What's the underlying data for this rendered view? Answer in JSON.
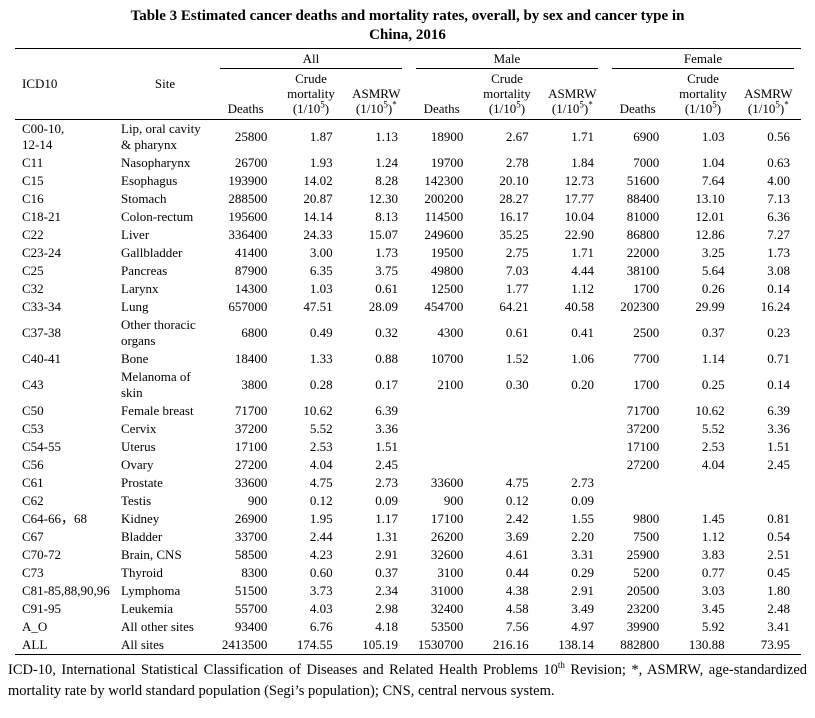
{
  "colors": {
    "text": "#000000",
    "background": "#ffffff",
    "rule": "#000000"
  },
  "title": {
    "line1": "Table 3 Estimated cancer deaths and mortality rates, overall, by sex and cancer type in",
    "line2": "China, 2016"
  },
  "table": {
    "col_headers": {
      "icd10": "ICD10",
      "site": "Site"
    },
    "groups": [
      "All",
      "Male",
      "Female"
    ],
    "subheaders": {
      "deaths": "Deaths",
      "crude_line1": "Crude",
      "crude_line2": "mortality",
      "rate_base": "(1/10",
      "rate_sup": "5",
      "rate_close": ")",
      "asmrw": "ASMRW",
      "asmrw_star": "*"
    },
    "rows": [
      {
        "icd10": "C00-10,\n12-14",
        "site": "Lip, oral cavity\n& pharynx",
        "all": [
          "25800",
          "1.87",
          "1.13"
        ],
        "male": [
          "18900",
          "2.67",
          "1.71"
        ],
        "female": [
          "6900",
          "1.03",
          "0.56"
        ]
      },
      {
        "icd10": "C11",
        "site": "Nasopharynx",
        "all": [
          "26700",
          "1.93",
          "1.24"
        ],
        "male": [
          "19700",
          "2.78",
          "1.84"
        ],
        "female": [
          "7000",
          "1.04",
          "0.63"
        ]
      },
      {
        "icd10": "C15",
        "site": "Esophagus",
        "all": [
          "193900",
          "14.02",
          "8.28"
        ],
        "male": [
          "142300",
          "20.10",
          "12.73"
        ],
        "female": [
          "51600",
          "7.64",
          "4.00"
        ]
      },
      {
        "icd10": "C16",
        "site": "Stomach",
        "all": [
          "288500",
          "20.87",
          "12.30"
        ],
        "male": [
          "200200",
          "28.27",
          "17.77"
        ],
        "female": [
          "88400",
          "13.10",
          "7.13"
        ]
      },
      {
        "icd10": "C18-21",
        "site": "Colon-rectum",
        "all": [
          "195600",
          "14.14",
          "8.13"
        ],
        "male": [
          "114500",
          "16.17",
          "10.04"
        ],
        "female": [
          "81000",
          "12.01",
          "6.36"
        ]
      },
      {
        "icd10": "C22",
        "site": "Liver",
        "all": [
          "336400",
          "24.33",
          "15.07"
        ],
        "male": [
          "249600",
          "35.25",
          "22.90"
        ],
        "female": [
          "86800",
          "12.86",
          "7.27"
        ]
      },
      {
        "icd10": "C23-24",
        "site": "Gallbladder",
        "all": [
          "41400",
          "3.00",
          "1.73"
        ],
        "male": [
          "19500",
          "2.75",
          "1.71"
        ],
        "female": [
          "22000",
          "3.25",
          "1.73"
        ]
      },
      {
        "icd10": "C25",
        "site": "Pancreas",
        "all": [
          "87900",
          "6.35",
          "3.75"
        ],
        "male": [
          "49800",
          "7.03",
          "4.44"
        ],
        "female": [
          "38100",
          "5.64",
          "3.08"
        ]
      },
      {
        "icd10": "C32",
        "site": "Larynx",
        "all": [
          "14300",
          "1.03",
          "0.61"
        ],
        "male": [
          "12500",
          "1.77",
          "1.12"
        ],
        "female": [
          "1700",
          "0.26",
          "0.14"
        ]
      },
      {
        "icd10": "C33-34",
        "site": "Lung",
        "all": [
          "657000",
          "47.51",
          "28.09"
        ],
        "male": [
          "454700",
          "64.21",
          "40.58"
        ],
        "female": [
          "202300",
          "29.99",
          "16.24"
        ]
      },
      {
        "icd10": "C37-38",
        "site": "Other thoracic\norgans",
        "all": [
          "6800",
          "0.49",
          "0.32"
        ],
        "male": [
          "4300",
          "0.61",
          "0.41"
        ],
        "female": [
          "2500",
          "0.37",
          "0.23"
        ]
      },
      {
        "icd10": "C40-41",
        "site": "Bone",
        "all": [
          "18400",
          "1.33",
          "0.88"
        ],
        "male": [
          "10700",
          "1.52",
          "1.06"
        ],
        "female": [
          "7700",
          "1.14",
          "0.71"
        ]
      },
      {
        "icd10": "C43",
        "site": "Melanoma of\nskin",
        "all": [
          "3800",
          "0.28",
          "0.17"
        ],
        "male": [
          "2100",
          "0.30",
          "0.20"
        ],
        "female": [
          "1700",
          "0.25",
          "0.14"
        ]
      },
      {
        "icd10": "C50",
        "site": "Female breast",
        "all": [
          "71700",
          "10.62",
          "6.39"
        ],
        "male": [
          "",
          "",
          ""
        ],
        "female": [
          "71700",
          "10.62",
          "6.39"
        ]
      },
      {
        "icd10": "C53",
        "site": "Cervix",
        "all": [
          "37200",
          "5.52",
          "3.36"
        ],
        "male": [
          "",
          "",
          ""
        ],
        "female": [
          "37200",
          "5.52",
          "3.36"
        ]
      },
      {
        "icd10": "C54-55",
        "site": "Uterus",
        "all": [
          "17100",
          "2.53",
          "1.51"
        ],
        "male": [
          "",
          "",
          ""
        ],
        "female": [
          "17100",
          "2.53",
          "1.51"
        ]
      },
      {
        "icd10": "C56",
        "site": "Ovary",
        "all": [
          "27200",
          "4.04",
          "2.45"
        ],
        "male": [
          "",
          "",
          ""
        ],
        "female": [
          "27200",
          "4.04",
          "2.45"
        ]
      },
      {
        "icd10": "C61",
        "site": "Prostate",
        "all": [
          "33600",
          "4.75",
          "2.73"
        ],
        "male": [
          "33600",
          "4.75",
          "2.73"
        ],
        "female": [
          "",
          "",
          ""
        ]
      },
      {
        "icd10": "C62",
        "site": "Testis",
        "all": [
          "900",
          "0.12",
          "0.09"
        ],
        "male": [
          "900",
          "0.12",
          "0.09"
        ],
        "female": [
          "",
          "",
          ""
        ]
      },
      {
        "icd10": "C64-66，68",
        "site": "Kidney",
        "all": [
          "26900",
          "1.95",
          "1.17"
        ],
        "male": [
          "17100",
          "2.42",
          "1.55"
        ],
        "female": [
          "9800",
          "1.45",
          "0.81"
        ]
      },
      {
        "icd10": "C67",
        "site": "Bladder",
        "all": [
          "33700",
          "2.44",
          "1.31"
        ],
        "male": [
          "26200",
          "3.69",
          "2.20"
        ],
        "female": [
          "7500",
          "1.12",
          "0.54"
        ]
      },
      {
        "icd10": "C70-72",
        "site": "Brain, CNS",
        "all": [
          "58500",
          "4.23",
          "2.91"
        ],
        "male": [
          "32600",
          "4.61",
          "3.31"
        ],
        "female": [
          "25900",
          "3.83",
          "2.51"
        ]
      },
      {
        "icd10": "C73",
        "site": "Thyroid",
        "all": [
          "8300",
          "0.60",
          "0.37"
        ],
        "male": [
          "3100",
          "0.44",
          "0.29"
        ],
        "female": [
          "5200",
          "0.77",
          "0.45"
        ]
      },
      {
        "icd10": "C81-85,88,90,96",
        "site": "Lymphoma",
        "all": [
          "51500",
          "3.73",
          "2.34"
        ],
        "male": [
          "31000",
          "4.38",
          "2.91"
        ],
        "female": [
          "20500",
          "3.03",
          "1.80"
        ]
      },
      {
        "icd10": "C91-95",
        "site": "Leukemia",
        "all": [
          "55700",
          "4.03",
          "2.98"
        ],
        "male": [
          "32400",
          "4.58",
          "3.49"
        ],
        "female": [
          "23200",
          "3.45",
          "2.48"
        ]
      },
      {
        "icd10": "A_O",
        "site": "All other sites",
        "all": [
          "93400",
          "6.76",
          "4.18"
        ],
        "male": [
          "53500",
          "7.56",
          "4.97"
        ],
        "female": [
          "39900",
          "5.92",
          "3.41"
        ]
      },
      {
        "icd10": "ALL",
        "site": "All sites",
        "all": [
          "2413500",
          "174.55",
          "105.19"
        ],
        "male": [
          "1530700",
          "216.16",
          "138.14"
        ],
        "female": [
          "882800",
          "130.88",
          "73.95"
        ]
      }
    ]
  },
  "footnote": {
    "part1": "ICD-10, International Statistical Classification of Diseases and Related Health Problems 10",
    "sup": "th",
    "part2": " Revision; *, ASMRW, age-standardized mortality rate by world standard population (Segi’s population); CNS, central nervous system."
  }
}
